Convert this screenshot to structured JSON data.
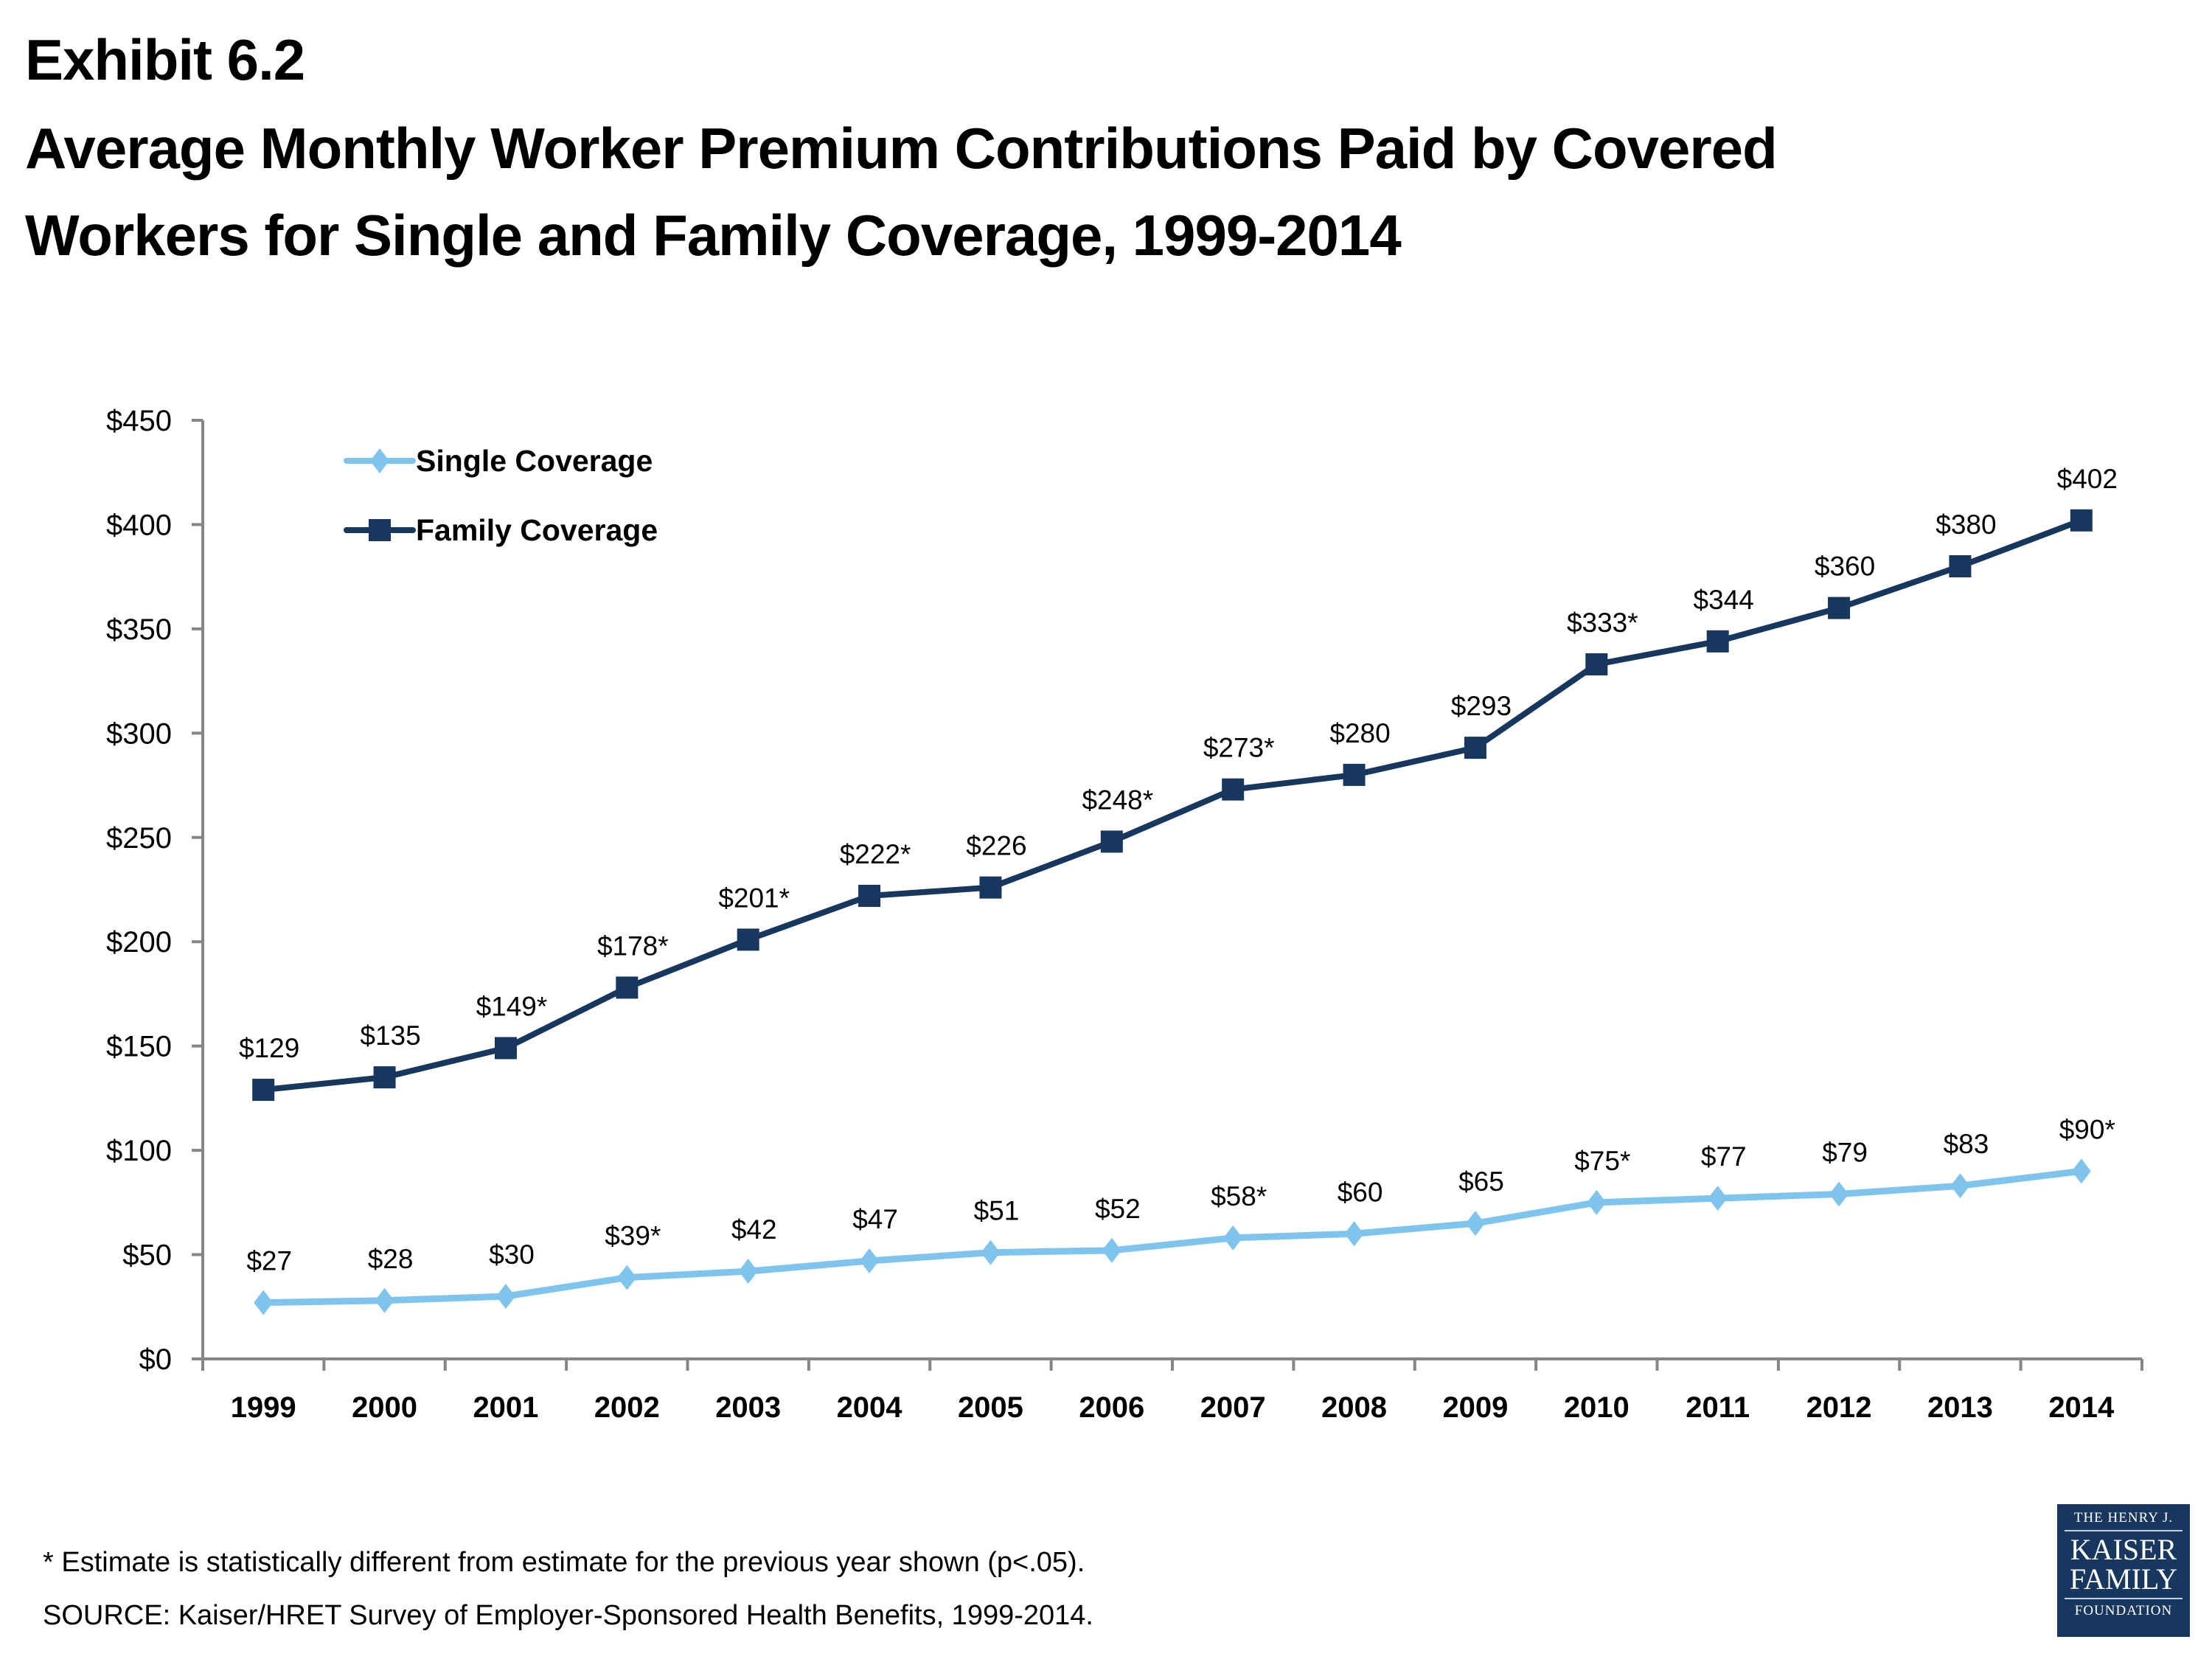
{
  "header": {
    "exhibit": "Exhibit 6.2",
    "title_line1": "Average Monthly Worker Premium Contributions Paid by Covered",
    "title_line2": "Workers for Single and Family Coverage, 1999-2014"
  },
  "chart_data": {
    "type": "line",
    "title": "Average Monthly Worker Premium Contributions Paid by Covered Workers for Single and Family Coverage, 1999-2014",
    "xlabel": "",
    "ylabel": "",
    "categories": [
      "1999",
      "2000",
      "2001",
      "2002",
      "2003",
      "2004",
      "2005",
      "2006",
      "2007",
      "2008",
      "2009",
      "2010",
      "2011",
      "2012",
      "2013",
      "2014"
    ],
    "ylim": [
      0,
      450
    ],
    "yticks": [
      0,
      50,
      100,
      150,
      200,
      250,
      300,
      350,
      400,
      450
    ],
    "ytick_labels": [
      "$0",
      "$50",
      "$100",
      "$150",
      "$200",
      "$250",
      "$300",
      "$350",
      "$400",
      "$450"
    ],
    "grid": false,
    "legend_position": "top-left",
    "series": [
      {
        "name": "Single Coverage",
        "color": "#7EC4EC",
        "marker": "diamond",
        "values": [
          27,
          28,
          30,
          39,
          42,
          47,
          51,
          52,
          58,
          60,
          65,
          75,
          77,
          79,
          83,
          90
        ],
        "labels": [
          "$27",
          "$28",
          "$30",
          "$39*",
          "$42",
          "$47",
          "$51",
          "$52",
          "$58*",
          "$60",
          "$65",
          "$75*",
          "$77",
          "$79",
          "$83",
          "$90*"
        ]
      },
      {
        "name": "Family Coverage",
        "color": "#17375E",
        "marker": "square",
        "values": [
          129,
          135,
          149,
          178,
          201,
          222,
          226,
          248,
          273,
          280,
          293,
          333,
          344,
          360,
          380,
          402
        ],
        "labels": [
          "$129",
          "$135",
          "$149*",
          "$178*",
          "$201*",
          "$222*",
          "$226",
          "$248*",
          "$273*",
          "$280",
          "$293",
          "$333*",
          "$344",
          "$360",
          "$380",
          "$402"
        ]
      }
    ]
  },
  "axis_color": "#868686",
  "footnotes": {
    "significance": "* Estimate is statistically different from estimate for the previous year shown (p<.05).",
    "source": "SOURCE:  Kaiser/HRET Survey of Employer-Sponsored Health Benefits, 1999-2014."
  },
  "logo": {
    "line1": "THE HENRY J.",
    "line2": "KAISER",
    "line3": "FAMILY",
    "line4": "FOUNDATION"
  }
}
